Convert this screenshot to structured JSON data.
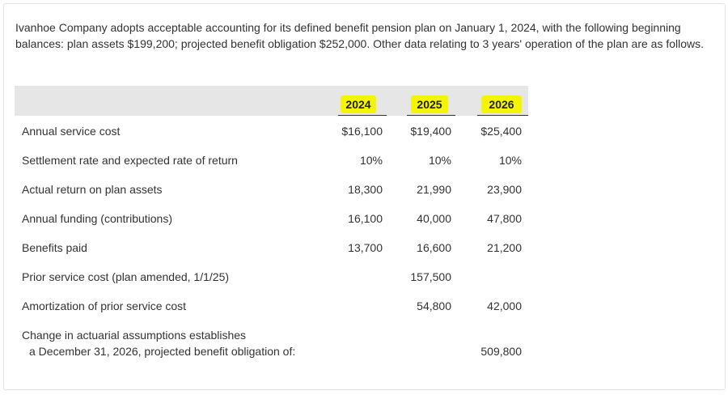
{
  "problem": {
    "intro": "Ivanhoe Company adopts acceptable accounting for its defined benefit pension plan on January 1, 2024, with the following beginning balances: plan assets $199,200; projected benefit obligation $252,000. Other data relating to 3 years' operation of the plan are as follows."
  },
  "table": {
    "years": [
      "2024",
      "2025",
      "2026"
    ],
    "highlight_color": "#f5f500",
    "rows": [
      {
        "label": "Annual service cost",
        "values": [
          "$16,100",
          "$19,400",
          "$25,400"
        ]
      },
      {
        "label": "Settlement rate and expected rate of return",
        "values": [
          "10%",
          "10%",
          "10%"
        ]
      },
      {
        "label": "Actual return on plan assets",
        "values": [
          "18,300",
          "21,990",
          "23,900"
        ]
      },
      {
        "label": "Annual funding (contributions)",
        "values": [
          "16,100",
          "40,000",
          "47,800"
        ]
      },
      {
        "label": "Benefits paid",
        "values": [
          "13,700",
          "16,600",
          "21,200"
        ]
      },
      {
        "label": "Prior service cost (plan amended, 1/1/25)",
        "values": [
          "",
          "157,500",
          ""
        ]
      },
      {
        "label": "Amortization of prior service cost",
        "values": [
          "",
          "54,800",
          "42,000"
        ]
      },
      {
        "label_line1": "Change in actuarial assumptions establishes",
        "label_line2": "a December 31, 2026, projected benefit obligation of:",
        "values": [
          "",
          "",
          "509,800"
        ]
      }
    ]
  }
}
